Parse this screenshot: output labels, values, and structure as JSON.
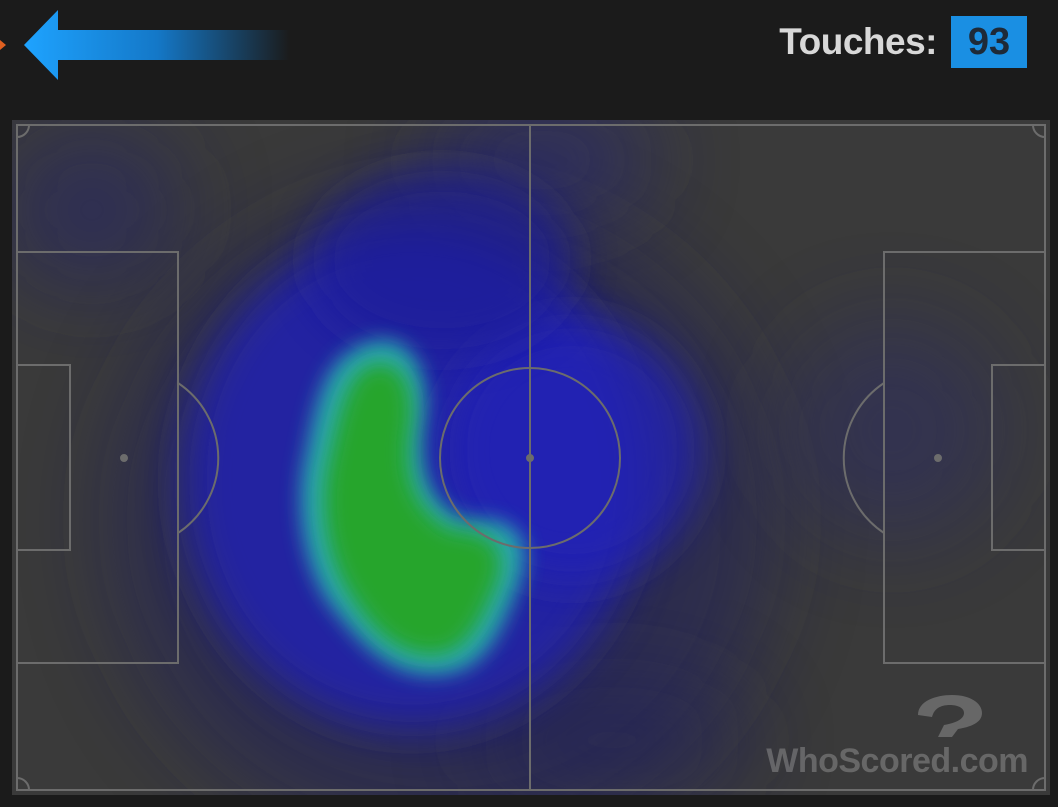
{
  "header": {
    "touches_label": "Touches:",
    "touches_value": "93",
    "arrow_icon": "left-arrow-icon",
    "accent_color": "#1a8fe3"
  },
  "heatmap": {
    "colors": {
      "low": "#1e1e8c",
      "mid": "#2a2ad0",
      "high": "#22a022"
    }
  },
  "watermark": {
    "text": "WhoScored.com",
    "logo_icon": "whoscored-logo-icon"
  }
}
